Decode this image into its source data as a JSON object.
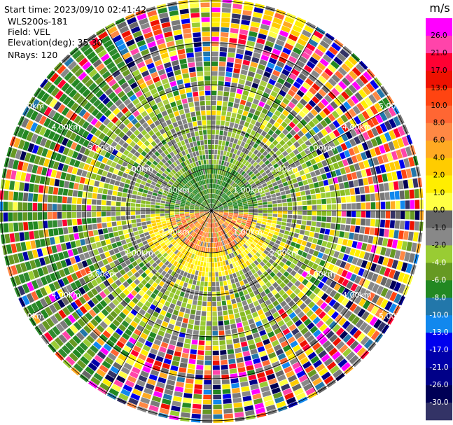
{
  "info": {
    "start_time": "Start time: 2023/09/10 02:41:42",
    "instrument": "WLS200s-181",
    "field": "Field: VEL",
    "elevation": "Elevation(deg): 35.30",
    "nrays": "NRays: 120"
  },
  "chart_data": {
    "type": "heatmap",
    "projection": "polar-ppi",
    "field": "VEL",
    "n_rays": 120,
    "range_ring_labels": [
      "1.00km",
      "2.00km",
      "3.00km",
      "4.00km",
      "5.00km"
    ],
    "colorbar": {
      "title": "m/s",
      "tick_labels": [
        "26.0",
        "21.0",
        "17.0",
        "13.0",
        "10.0",
        "8.0",
        "6.0",
        "4.0",
        "2.0",
        "1.0",
        "0.0",
        "-1.0",
        "-2.0",
        "-4.0",
        "-6.0",
        "-8.0",
        "-10.0",
        "-13.0",
        "-17.0",
        "-21.0",
        "-26.0",
        "-30.0"
      ],
      "colors": [
        "#ff00ff",
        "#ff44aa",
        "#ff0033",
        "#ee1100",
        "#ff4411",
        "#ff6633",
        "#ff8844",
        "#ffaa22",
        "#ffcc00",
        "#ffee00",
        "#ffff44",
        "#666666",
        "#888888",
        "#99cc33",
        "#669922",
        "#228822",
        "#2277aa",
        "#1188ee",
        "#0000ee",
        "#0000aa",
        "#000088",
        "#000055",
        "#333366"
      ]
    }
  }
}
